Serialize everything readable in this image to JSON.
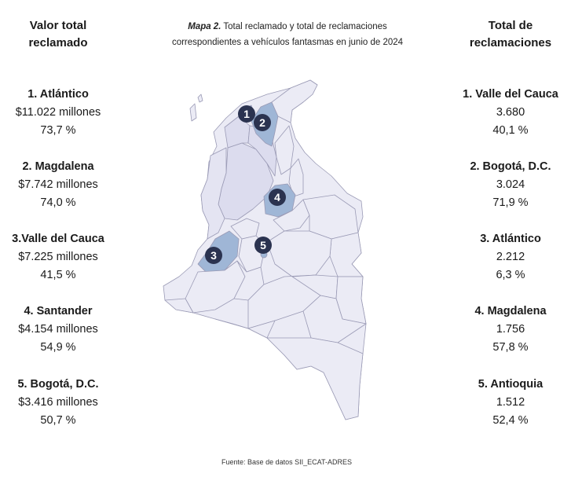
{
  "map_title": {
    "prefix": "Mapa 2.",
    "text": " Total reclamado y total de reclamaciones correspondientes a vehículos fantasmas en junio de 2024"
  },
  "left_column": {
    "title_line1": "Valor total",
    "title_line2": "reclamado",
    "items": [
      {
        "name": "1. Atlántico",
        "value": "$11.022 millones",
        "percent": "73,7 %"
      },
      {
        "name": "2. Magdalena",
        "value": "$7.742 millones",
        "percent": "74,0 %"
      },
      {
        "name": "3.Valle del Cauca",
        "value": "$7.225 millones",
        "percent": "41,5 %"
      },
      {
        "name": "4. Santander",
        "value": "$4.154 millones",
        "percent": "54,9 %"
      },
      {
        "name": "5. Bogotá, D.C.",
        "value": "$3.416 millones",
        "percent": "50,7 %"
      }
    ]
  },
  "right_column": {
    "title_line1": "Total de",
    "title_line2": "reclamaciones",
    "items": [
      {
        "name": "1. Valle del Cauca",
        "value": "3.680",
        "percent": "40,1 %"
      },
      {
        "name": "2. Bogotá, D.C.",
        "value": "3.024",
        "percent": "71,9 %"
      },
      {
        "name": "3. Atlántico",
        "value": "2.212",
        "percent": "6,3 %"
      },
      {
        "name": "4. Magdalena",
        "value": "1.756",
        "percent": "57,8 %"
      },
      {
        "name": "5. Antioquia",
        "value": "1.512",
        "percent": "52,4 %"
      }
    ]
  },
  "map_markers": [
    "1",
    "2",
    "3",
    "4",
    "5"
  ],
  "source": "Fuente: Base de datos SII_ECAT-ADRES",
  "colors": {
    "region_light": "#ebebf5",
    "region_mid": "#dcdcee",
    "region_highlight": "#9fb6d6",
    "border": "#9a9ab5",
    "marker": "#2b3350"
  }
}
